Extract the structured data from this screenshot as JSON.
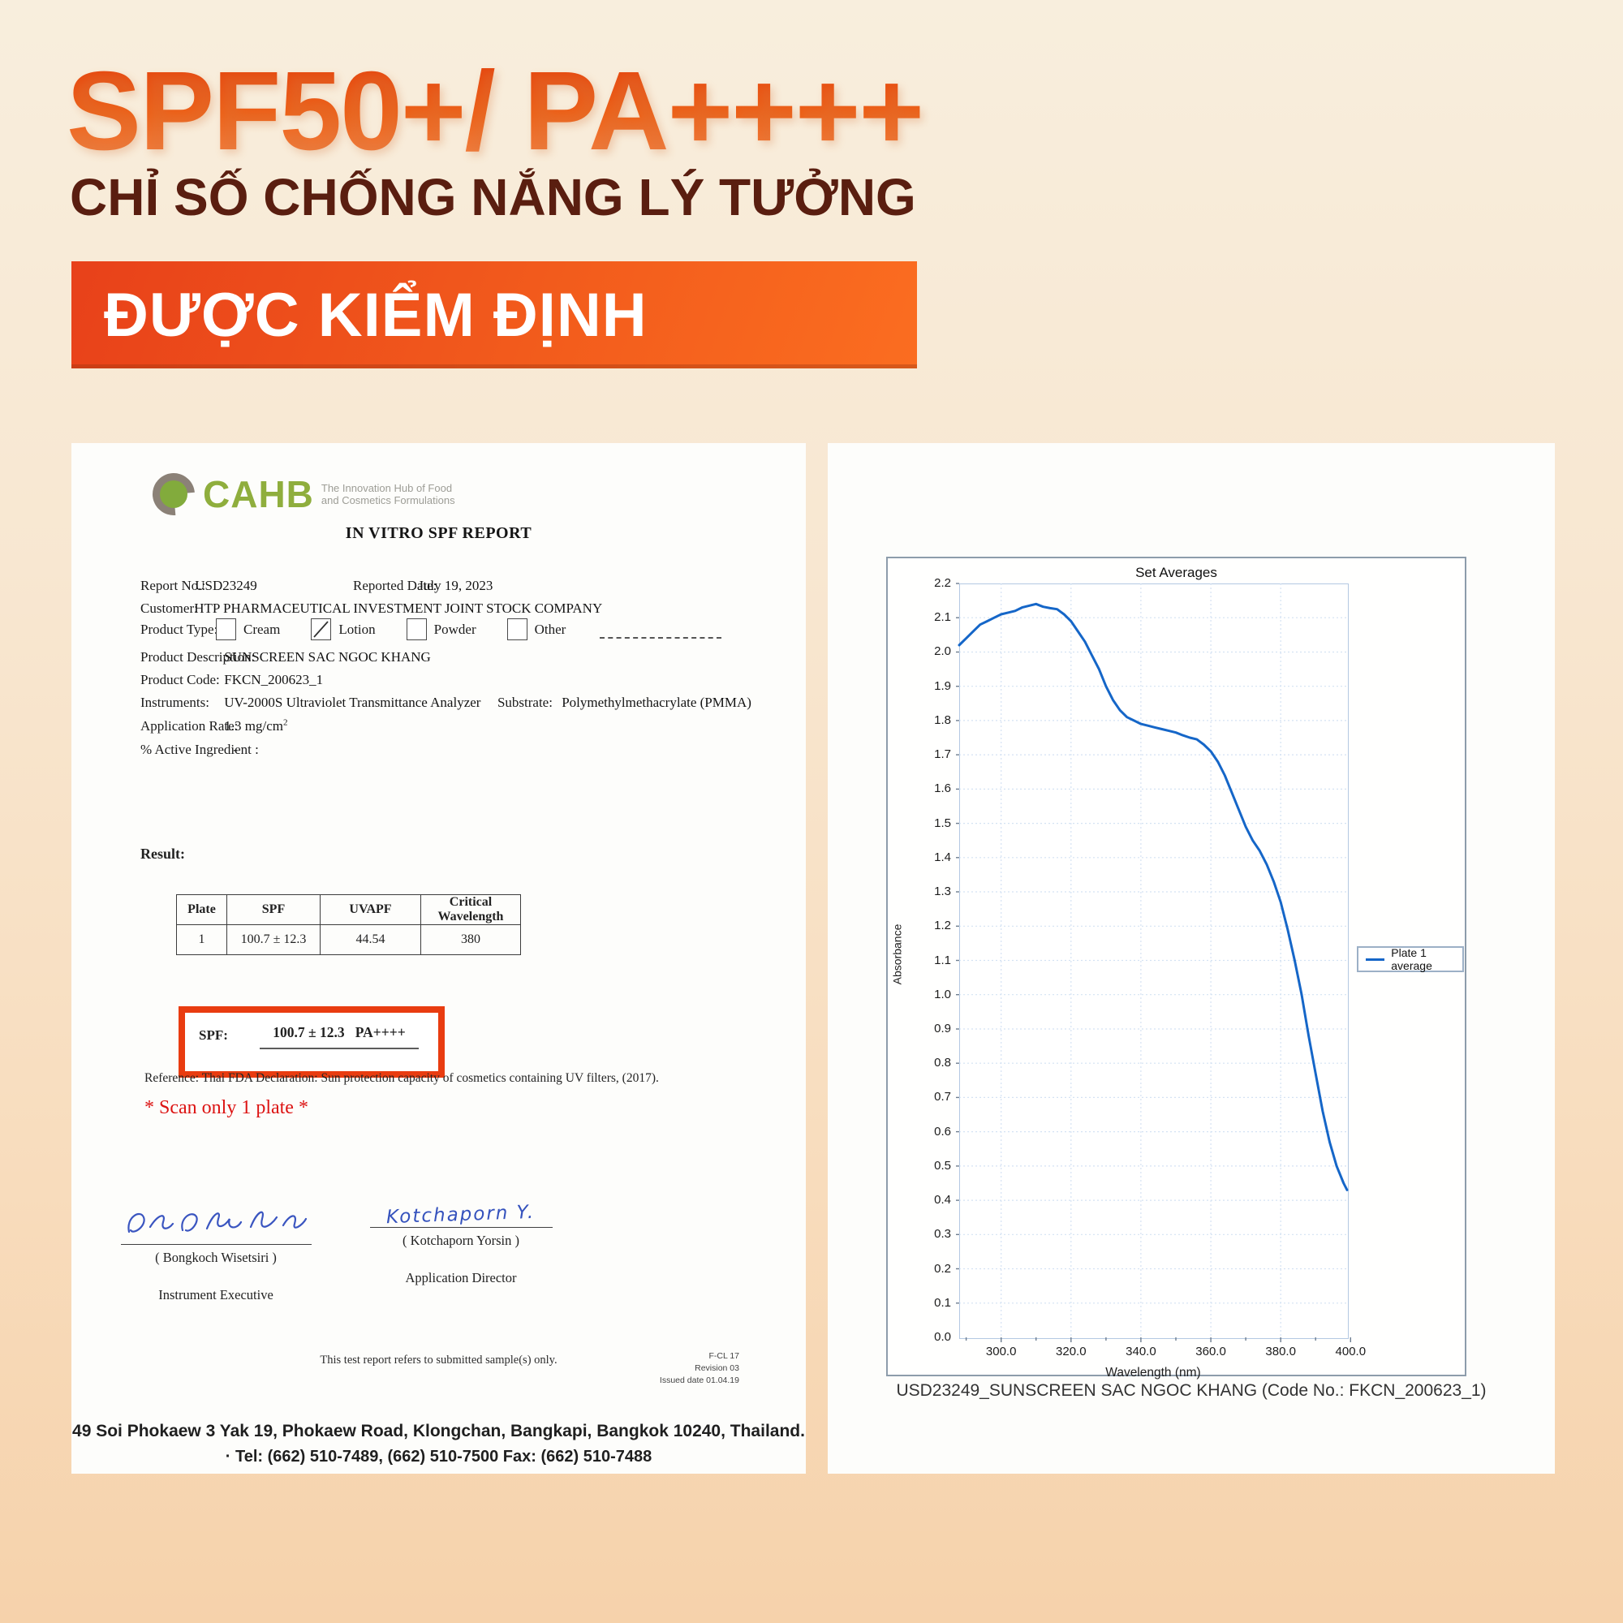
{
  "header": {
    "title": "SPF50+/ PA++++",
    "subtitle": "CHỈ SỐ CHỐNG NẮNG LÝ TƯỞNG",
    "banner": "ĐƯỢC KIỂM ĐỊNH"
  },
  "left_page": {
    "logo": {
      "brand": "CAHB",
      "tagline_line1": "The Innovation Hub of Food",
      "tagline_line2": "and Cosmetics Formulations"
    },
    "title": "IN VITRO SPF REPORT",
    "fields": {
      "report_no": {
        "label": "Report No.:",
        "value": "USD23249"
      },
      "reported_date": {
        "label": "Reported Date:",
        "value": "July 19, 2023"
      },
      "customer": {
        "label": "Customer:",
        "value": "HTP PHARMACEUTICAL INVESTMENT JOINT STOCK COMPANY"
      },
      "product_type": {
        "label": "Product Type:",
        "options": [
          {
            "label": "Cream",
            "checked": false
          },
          {
            "label": "Lotion",
            "checked": true
          },
          {
            "label": "Powder",
            "checked": false
          },
          {
            "label": "Other",
            "checked": false
          }
        ]
      },
      "product_description": {
        "label": "Product Description:",
        "value": "SUNSCREEN SAC NGOC KHANG"
      },
      "product_code": {
        "label": "Product Code:",
        "value": "FKCN_200623_1"
      },
      "instruments": {
        "label": "Instruments:",
        "value": "UV-2000S Ultraviolet Transmittance Analyzer",
        "substrate_label": "Substrate:",
        "substrate_value": "Polymethylmethacrylate (PMMA)"
      },
      "application_rate": {
        "label": "Application Rate:",
        "value": "1.3 mg/cm",
        "sup": "2"
      },
      "active_ingredient": {
        "label": "% Active Ingredient  :",
        "value": "-"
      }
    },
    "result": {
      "label": "Result:",
      "table": {
        "headers": [
          "Plate",
          "SPF",
          "UVAPF",
          "Critical Wavelength"
        ],
        "rows": [
          [
            "1",
            "100.7 ± 12.3",
            "44.54",
            "380"
          ]
        ]
      },
      "spf_box": {
        "label": "SPF:",
        "value_num": "100.7 ± 12.3",
        "value_pa": "PA++++"
      },
      "reference": "Reference: Thai FDA Declaration: Sun protection capacity of cosmetics containing UV filters, (2017).",
      "red_note": "* Scan only 1 plate *"
    },
    "signatures": {
      "left": {
        "name": "( Bongkoch Wisetsiri )",
        "title": "Instrument Executive"
      },
      "right": {
        "script": "Kotchaporn Y.",
        "name": "( Kotchaporn Yorsin )",
        "title": "Application Director"
      }
    },
    "footer": {
      "note": "This test report refers to submitted sample(s) only.",
      "form_code": "F-CL 17",
      "revision": "Revision 03",
      "issued": "Issued date 01.04.19",
      "address": "49 Soi Phokaew 3 Yak 19, Phokaew Road, Klongchan, Bangkapi, Bangkok 10240, Thailand.",
      "phone": "· Tel: (662) 510-7489, (662) 510-7500 Fax: (662) 510-7488"
    }
  },
  "right_page": {
    "caption": "USD23249_SUNSCREEN SAC NGOC KHANG (Code No.: FKCN_200623_1)"
  },
  "chart_data": {
    "type": "line",
    "title": "Set Averages",
    "xlabel": "Wavelength (nm)",
    "ylabel": "Absorbance",
    "xlim": [
      288,
      399
    ],
    "ylim": [
      0,
      2.2
    ],
    "grid": true,
    "x_ticks": [
      300,
      320,
      340,
      360,
      380,
      400
    ],
    "x_tick_labels": [
      "300.0",
      "320.0",
      "340.0",
      "360.0",
      "380.0",
      "400.0"
    ],
    "x_minor_ticks": [
      290,
      310,
      330,
      350,
      370,
      390
    ],
    "y_ticks": [
      0.0,
      0.1,
      0.2,
      0.3,
      0.4,
      0.5,
      0.6,
      0.7,
      0.8,
      0.9,
      1.0,
      1.1,
      1.2,
      1.3,
      1.4,
      1.5,
      1.6,
      1.7,
      1.8,
      1.9,
      2.0,
      2.1,
      2.2
    ],
    "y_tick_labels": [
      "0.0",
      "0.1",
      "0.2",
      "0.3",
      "0.4",
      "0.5",
      "0.6",
      "0.7",
      "0.8",
      "0.9",
      "1.0",
      "1.1",
      "1.2",
      "1.3",
      "1.4",
      "1.5",
      "1.6",
      "1.7",
      "1.8",
      "1.9",
      "2.0",
      "2.1",
      "2.2"
    ],
    "legend": {
      "label": "Plate 1 average",
      "position": "right-outside"
    },
    "line_color": "#1566c8",
    "series": [
      {
        "name": "Plate 1 average",
        "x": [
          288,
          290,
          292,
          294,
          296,
          298,
          300,
          302,
          304,
          306,
          308,
          310,
          312,
          314,
          316,
          318,
          320,
          322,
          324,
          326,
          328,
          330,
          332,
          334,
          336,
          338,
          340,
          342,
          344,
          346,
          348,
          350,
          352,
          354,
          356,
          358,
          360,
          362,
          364,
          366,
          368,
          370,
          372,
          374,
          376,
          378,
          380,
          382,
          384,
          386,
          388,
          390,
          392,
          394,
          396,
          398,
          399
        ],
        "y": [
          2.02,
          2.04,
          2.06,
          2.08,
          2.09,
          2.1,
          2.11,
          2.115,
          2.12,
          2.13,
          2.135,
          2.14,
          2.132,
          2.128,
          2.125,
          2.11,
          2.09,
          2.06,
          2.03,
          1.99,
          1.95,
          1.9,
          1.86,
          1.83,
          1.81,
          1.8,
          1.79,
          1.785,
          1.78,
          1.775,
          1.77,
          1.765,
          1.757,
          1.75,
          1.745,
          1.73,
          1.71,
          1.68,
          1.64,
          1.59,
          1.54,
          1.49,
          1.45,
          1.42,
          1.38,
          1.33,
          1.27,
          1.19,
          1.1,
          1.0,
          0.88,
          0.77,
          0.66,
          0.57,
          0.5,
          0.45,
          0.43
        ]
      }
    ]
  }
}
